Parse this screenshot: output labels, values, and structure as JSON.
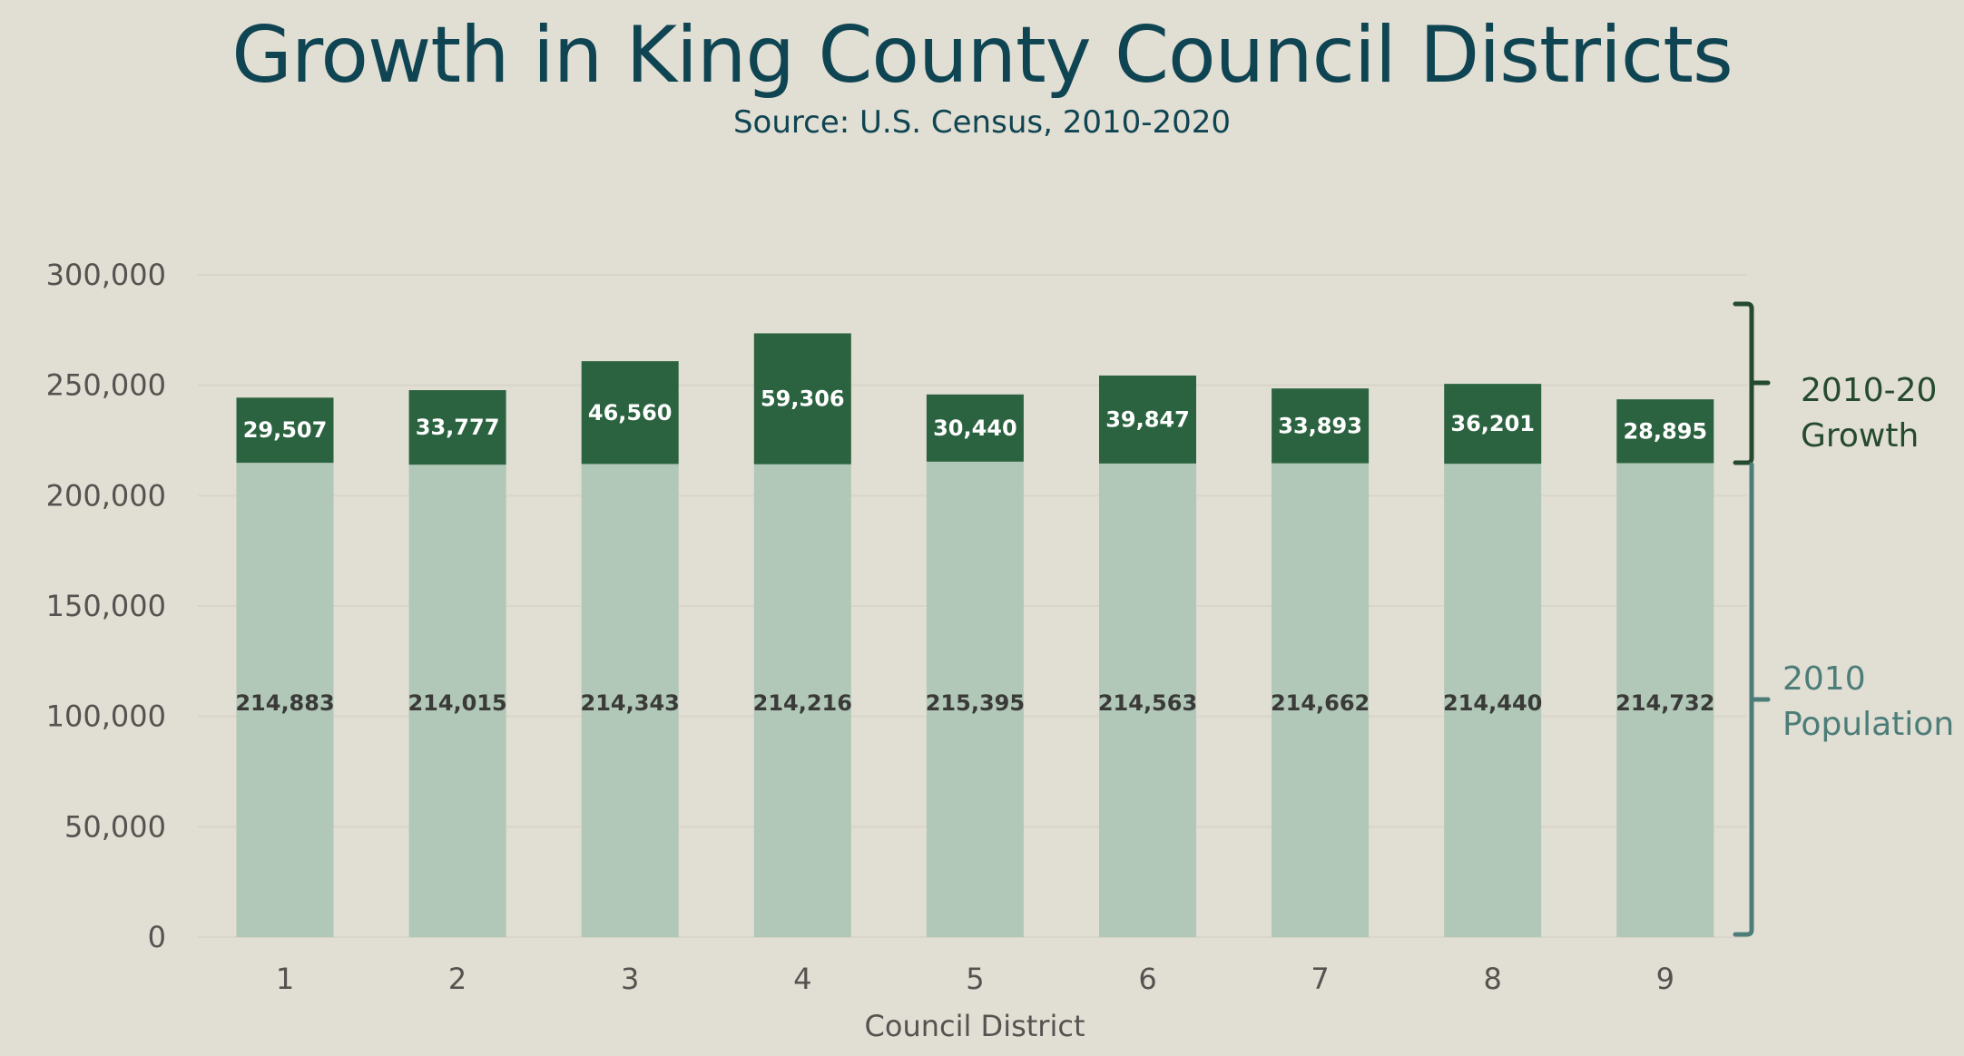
{
  "colors": {
    "background": "#E1DED3",
    "title": "#0F4452",
    "growth_bar": "#2B6340",
    "base_bar": "#B1C7B7",
    "gridline": "#D8D5CA",
    "growth_brace": "#254A2E",
    "base_brace": "#4C7D78"
  },
  "chart_data": {
    "type": "bar",
    "stacked": true,
    "title": "Growth in King County Council Districts",
    "subtitle": "Source: U.S. Census, 2010-2020",
    "xlabel": "Council District",
    "ylabel": "",
    "categories": [
      "1",
      "2",
      "3",
      "4",
      "5",
      "6",
      "7",
      "8",
      "9"
    ],
    "series": [
      {
        "name": "2010 Population",
        "values": [
          214883,
          214015,
          214343,
          214216,
          215395,
          214563,
          214662,
          214440,
          214732
        ],
        "labels": [
          "214,883",
          "214,015",
          "214,343",
          "214,216",
          "215,395",
          "214,563",
          "214,662",
          "214,440",
          "214,732"
        ]
      },
      {
        "name": "2010-20 Growth",
        "values": [
          29507,
          33777,
          46560,
          59306,
          30440,
          39847,
          33893,
          36201,
          28895
        ],
        "labels": [
          "29,507",
          "33,777",
          "46,560",
          "59,306",
          "30,440",
          "39,847",
          "33,893",
          "36,201",
          "28,895"
        ]
      }
    ],
    "ylim": [
      0,
      300000
    ],
    "yticks": [
      0,
      50000,
      100000,
      150000,
      200000,
      250000,
      300000
    ],
    "ytick_labels": [
      "0",
      "50,000",
      "100,000",
      "150,000",
      "200,000",
      "250,000",
      "300,000"
    ],
    "grid": true,
    "legend": {
      "placement": "right",
      "style": "brace",
      "entries": [
        {
          "line1": "2010-20",
          "line2": "Growth"
        },
        {
          "line1": "2010",
          "line2": "Population"
        }
      ]
    }
  }
}
